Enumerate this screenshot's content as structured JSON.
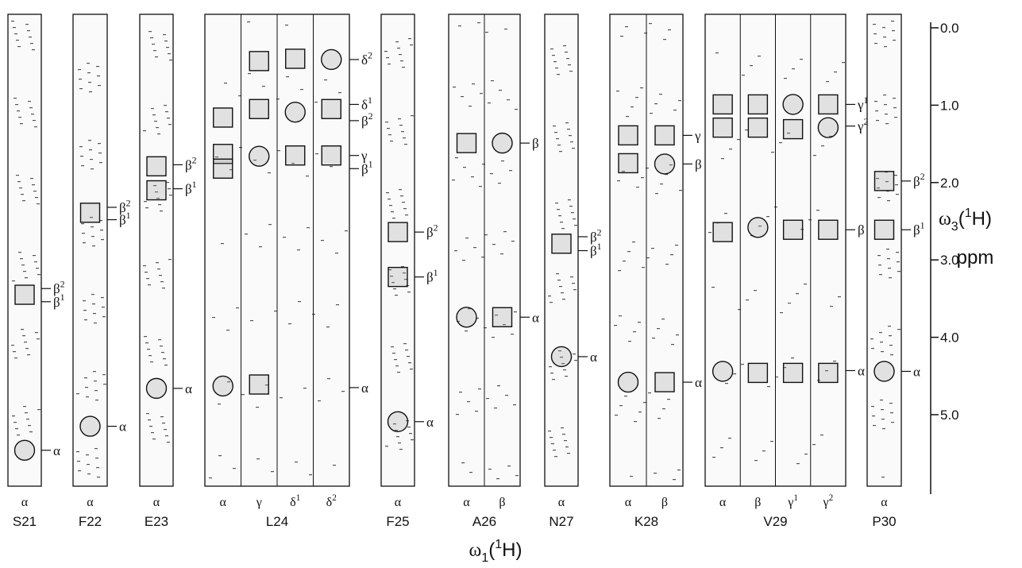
{
  "strips": [
    {
      "residue": "S21",
      "columns": [
        {
          "atom": {
            "base": "α"
          },
          "peaks": [
            {
              "shape": "box",
              "ppm": 3.45
            },
            {
              "shape": "circle",
              "ppm": 5.46
            }
          ]
        }
      ],
      "labels": [
        {
          "base": "β",
          "sup": "2",
          "ppm": 3.37
        },
        {
          "base": "β",
          "sup": "1",
          "ppm": 3.54
        },
        {
          "base": "α",
          "ppm": 5.46
        }
      ]
    },
    {
      "residue": "F22",
      "columns": [
        {
          "atom": {
            "base": "α"
          },
          "peaks": [
            {
              "shape": "box",
              "ppm": 2.39
            },
            {
              "shape": "circle",
              "ppm": 5.15
            }
          ]
        }
      ],
      "labels": [
        {
          "base": "β",
          "sup": "2",
          "ppm": 2.32
        },
        {
          "base": "β",
          "sup": "1",
          "ppm": 2.48
        },
        {
          "base": "α",
          "ppm": 5.15
        }
      ]
    },
    {
      "residue": "E23",
      "columns": [
        {
          "atom": {
            "base": "α"
          },
          "peaks": [
            {
              "shape": "box",
              "ppm": 1.79
            },
            {
              "shape": "box",
              "ppm": 2.1
            },
            {
              "shape": "circle",
              "ppm": 4.66
            }
          ]
        }
      ],
      "labels": [
        {
          "base": "β",
          "sup": "2",
          "ppm": 1.77
        },
        {
          "base": "β",
          "sup": "1",
          "ppm": 2.08
        },
        {
          "base": "α",
          "ppm": 4.66
        }
      ]
    },
    {
      "residue": "L24",
      "columns": [
        {
          "atom": {
            "base": "α"
          },
          "peaks": [
            {
              "shape": "box",
              "ppm": 1.16
            },
            {
              "shape": "box",
              "ppm": 1.63
            },
            {
              "shape": "box",
              "ppm": 1.82
            },
            {
              "shape": "circle",
              "ppm": 4.63
            }
          ]
        },
        {
          "atom": {
            "base": "γ"
          },
          "peaks": [
            {
              "shape": "box",
              "ppm": 0.43
            },
            {
              "shape": "box",
              "ppm": 1.05
            },
            {
              "shape": "circle",
              "ppm": 1.66
            },
            {
              "shape": "box",
              "ppm": 4.61
            }
          ]
        },
        {
          "atom": {
            "base": "δ",
            "sup": "1"
          },
          "peaks": [
            {
              "shape": "box",
              "ppm": 0.4
            },
            {
              "shape": "circle",
              "ppm": 1.09
            },
            {
              "shape": "box",
              "ppm": 1.65
            }
          ]
        },
        {
          "atom": {
            "base": "δ",
            "sup": "2"
          },
          "peaks": [
            {
              "shape": "circle",
              "ppm": 0.41
            },
            {
              "shape": "box",
              "ppm": 1.05
            },
            {
              "shape": "box",
              "ppm": 1.65
            }
          ]
        }
      ],
      "labels": [
        {
          "base": "δ",
          "sup": "2",
          "ppm": 0.41
        },
        {
          "base": "δ",
          "sup": "1",
          "ppm": 0.99
        },
        {
          "base": "β",
          "sup": "2",
          "ppm": 1.2
        },
        {
          "base": "γ",
          "ppm": 1.65
        },
        {
          "base": "β",
          "sup": "1",
          "ppm": 1.82
        },
        {
          "base": "α",
          "ppm": 4.65
        }
      ]
    },
    {
      "residue": "F25",
      "columns": [
        {
          "atom": {
            "base": "α"
          },
          "peaks": [
            {
              "shape": "box",
              "ppm": 2.64
            },
            {
              "shape": "box",
              "ppm": 3.22
            },
            {
              "shape": "circle",
              "ppm": 5.09
            }
          ]
        }
      ],
      "labels": [
        {
          "base": "β",
          "sup": "2",
          "ppm": 2.64
        },
        {
          "base": "β",
          "sup": "1",
          "ppm": 3.22
        },
        {
          "base": "α",
          "ppm": 5.09
        }
      ]
    },
    {
      "residue": "A26",
      "columns": [
        {
          "atom": {
            "base": "α"
          },
          "peaks": [
            {
              "shape": "box",
              "ppm": 1.49
            },
            {
              "shape": "circle",
              "ppm": 3.74
            }
          ]
        },
        {
          "atom": {
            "base": "β"
          },
          "peaks": [
            {
              "shape": "circle",
              "ppm": 1.49
            },
            {
              "shape": "box",
              "ppm": 3.74
            }
          ]
        }
      ],
      "labels": [
        {
          "base": "β",
          "ppm": 1.49
        },
        {
          "base": "α",
          "ppm": 3.74
        }
      ]
    },
    {
      "residue": "N27",
      "columns": [
        {
          "atom": {
            "base": "α"
          },
          "peaks": [
            {
              "shape": "box",
              "ppm": 2.79
            },
            {
              "shape": "circle",
              "ppm": 4.25
            }
          ]
        }
      ],
      "labels": [
        {
          "base": "β",
          "sup": "2",
          "ppm": 2.7
        },
        {
          "base": "β",
          "sup": "1",
          "ppm": 2.88
        },
        {
          "base": "α",
          "ppm": 4.25
        }
      ]
    },
    {
      "residue": "K28",
      "columns": [
        {
          "atom": {
            "base": "α"
          },
          "peaks": [
            {
              "shape": "box",
              "ppm": 1.39
            },
            {
              "shape": "box",
              "ppm": 1.75
            },
            {
              "shape": "circle",
              "ppm": 4.58
            }
          ]
        },
        {
          "atom": {
            "base": "β"
          },
          "peaks": [
            {
              "shape": "box",
              "ppm": 1.39
            },
            {
              "shape": "circle",
              "ppm": 1.76
            },
            {
              "shape": "box",
              "ppm": 4.58
            }
          ]
        }
      ],
      "labels": [
        {
          "base": "γ",
          "ppm": 1.39
        },
        {
          "base": "β",
          "ppm": 1.76
        },
        {
          "base": "α",
          "ppm": 4.58
        }
      ]
    },
    {
      "residue": "V29",
      "columns": [
        {
          "atom": {
            "base": "α"
          },
          "peaks": [
            {
              "shape": "box",
              "ppm": 0.99
            },
            {
              "shape": "box",
              "ppm": 1.29
            },
            {
              "shape": "box",
              "ppm": 2.64
            },
            {
              "shape": "circle",
              "ppm": 4.44
            }
          ]
        },
        {
          "atom": {
            "base": "β"
          },
          "peaks": [
            {
              "shape": "box",
              "ppm": 0.99
            },
            {
              "shape": "box",
              "ppm": 1.29
            },
            {
              "shape": "circle",
              "ppm": 2.58
            },
            {
              "shape": "box",
              "ppm": 4.46
            }
          ]
        },
        {
          "atom": {
            "base": "γ",
            "sup": "1"
          },
          "peaks": [
            {
              "shape": "circle",
              "ppm": 0.99
            },
            {
              "shape": "box",
              "ppm": 1.31
            },
            {
              "shape": "box",
              "ppm": 2.61
            },
            {
              "shape": "box",
              "ppm": 4.46
            }
          ]
        },
        {
          "atom": {
            "base": "γ",
            "sup": "2"
          },
          "peaks": [
            {
              "shape": "box",
              "ppm": 0.99
            },
            {
              "shape": "circle",
              "ppm": 1.29
            },
            {
              "shape": "box",
              "ppm": 2.61
            },
            {
              "shape": "box",
              "ppm": 4.46
            }
          ]
        }
      ],
      "labels": [
        {
          "base": "γ",
          "sup": "1",
          "ppm": 0.99
        },
        {
          "base": "γ",
          "sup": "2",
          "ppm": 1.27
        },
        {
          "base": "β",
          "ppm": 2.61
        },
        {
          "base": "α",
          "ppm": 4.43
        }
      ]
    },
    {
      "residue": "P30",
      "columns": [
        {
          "atom": {
            "base": "α"
          },
          "peaks": [
            {
              "shape": "box",
              "ppm": 1.98
            },
            {
              "shape": "box",
              "ppm": 2.61
            },
            {
              "shape": "circle",
              "ppm": 4.44
            }
          ]
        }
      ],
      "labels": [
        {
          "base": "β",
          "sup": "2",
          "ppm": 1.98
        },
        {
          "base": "β",
          "sup": "1",
          "ppm": 2.61
        },
        {
          "base": "α",
          "ppm": 4.44
        }
      ]
    }
  ],
  "y_axis": {
    "title": {
      "base": "ω",
      "sub": "3",
      "open": "(",
      "sup": "1",
      "close": "H)"
    },
    "unit": "ppm",
    "ticks": [
      {
        "value": 0,
        "label": "0.0"
      },
      {
        "value": 1,
        "label": "1.0"
      },
      {
        "value": 2,
        "label": "2.0"
      },
      {
        "value": 3,
        "label": "3.0"
      },
      {
        "value": 4,
        "label": "4.0"
      },
      {
        "value": 5,
        "label": "5.0"
      }
    ]
  },
  "x_axis": {
    "title": {
      "base": "ω",
      "sub": "1",
      "open": "(",
      "sup": "1",
      "close": "H)"
    }
  }
}
